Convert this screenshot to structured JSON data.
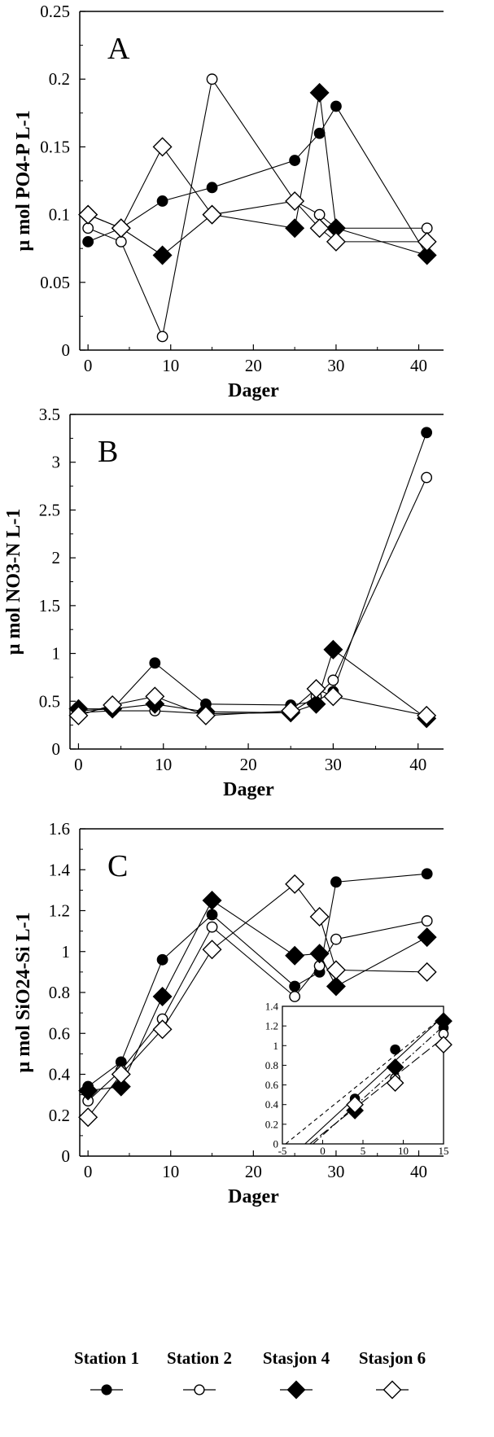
{
  "colors": {
    "ink": "#000000",
    "background": "#ffffff"
  },
  "legend": {
    "items": [
      {
        "label": "Station 1",
        "marker": "filled-circle"
      },
      {
        "label": "Station 2",
        "marker": "open-circle"
      },
      {
        "label": "Stasjon 4",
        "marker": "filled-diamond"
      },
      {
        "label": "Stasjon 6",
        "marker": "open-diamond"
      }
    ]
  },
  "chart_data": [
    {
      "type": "line",
      "panel_label": "A",
      "xlabel": "Dager",
      "ylabel": "µ mol PO4-P L-1",
      "xlim": [
        -1,
        43
      ],
      "ylim": [
        0,
        0.25
      ],
      "xticks": [
        0,
        10,
        20,
        30,
        40
      ],
      "yticks": [
        0,
        0.05,
        0.1,
        0.15,
        0.2,
        0.25
      ],
      "ytick_labels": [
        "0",
        "0.05",
        "0.1",
        "0.15",
        "0.2",
        "0.25"
      ],
      "grid": false,
      "series": [
        {
          "name": "Station 1",
          "marker": "filled-circle",
          "x": [
            0,
            4,
            9,
            15,
            25,
            28,
            30,
            41
          ],
          "y": [
            0.08,
            0.09,
            0.11,
            0.12,
            0.14,
            0.16,
            0.18,
            0.07
          ]
        },
        {
          "name": "Station 2",
          "marker": "open-circle",
          "x": [
            0,
            4,
            9,
            15,
            25,
            28,
            30,
            41
          ],
          "y": [
            0.09,
            0.08,
            0.01,
            0.2,
            0.11,
            0.1,
            0.09,
            0.09
          ]
        },
        {
          "name": "Stasjon 4",
          "marker": "filled-diamond",
          "x": [
            0,
            4,
            9,
            15,
            25,
            28,
            30,
            41
          ],
          "y": [
            0.1,
            0.09,
            0.07,
            0.1,
            0.09,
            0.19,
            0.09,
            0.07
          ]
        },
        {
          "name": "Stasjon 6",
          "marker": "open-diamond",
          "x": [
            0,
            4,
            9,
            15,
            25,
            28,
            30,
            41
          ],
          "y": [
            0.1,
            0.09,
            0.15,
            0.1,
            0.11,
            0.09,
            0.08,
            0.08
          ]
        }
      ]
    },
    {
      "type": "line",
      "panel_label": "B",
      "xlabel": "Dager",
      "ylabel": "µ mol NO3-N L-1",
      "xlim": [
        -1,
        43
      ],
      "ylim": [
        0,
        3.5
      ],
      "xticks": [
        0,
        10,
        20,
        30,
        40
      ],
      "yticks": [
        0,
        0.5,
        1,
        1.5,
        2,
        2.5,
        3,
        3.5
      ],
      "ytick_labels": [
        "0",
        "0.5",
        "1",
        "1.5",
        "2",
        "2.5",
        "3",
        "3.5"
      ],
      "grid": false,
      "series": [
        {
          "name": "Station 1",
          "marker": "filled-circle",
          "x": [
            0,
            4,
            9,
            15,
            25,
            28,
            30,
            41
          ],
          "y": [
            0.4,
            0.42,
            0.9,
            0.47,
            0.46,
            0.5,
            0.6,
            3.31
          ]
        },
        {
          "name": "Station 2",
          "marker": "open-circle",
          "x": [
            0,
            4,
            9,
            15,
            25,
            28,
            30,
            41
          ],
          "y": [
            0.38,
            0.4,
            0.4,
            0.37,
            0.38,
            0.55,
            0.72,
            2.84
          ]
        },
        {
          "name": "Stasjon 4",
          "marker": "filled-diamond",
          "x": [
            0,
            4,
            9,
            15,
            25,
            28,
            30,
            41
          ],
          "y": [
            0.42,
            0.42,
            0.47,
            0.39,
            0.38,
            0.47,
            1.04,
            0.32
          ]
        },
        {
          "name": "Stasjon 6",
          "marker": "open-diamond",
          "x": [
            0,
            4,
            9,
            15,
            25,
            28,
            30,
            41
          ],
          "y": [
            0.35,
            0.46,
            0.55,
            0.35,
            0.4,
            0.63,
            0.55,
            0.35
          ]
        }
      ]
    },
    {
      "type": "line",
      "panel_label": "C",
      "xlabel": "Dager",
      "ylabel": "µ mol SiO24-Si L-1",
      "xlim": [
        -1,
        43
      ],
      "ylim": [
        0,
        1.6
      ],
      "xticks": [
        0,
        10,
        20,
        30,
        40
      ],
      "yticks": [
        0,
        0.2,
        0.4,
        0.6,
        0.8,
        1,
        1.2,
        1.4,
        1.6
      ],
      "ytick_labels": [
        "0",
        "0.2",
        "0.4",
        "0.6",
        "0.8",
        "1",
        "1.2",
        "1.4",
        "1.6"
      ],
      "grid": false,
      "series": [
        {
          "name": "Station 1",
          "marker": "filled-circle",
          "x": [
            0,
            4,
            9,
            15,
            25,
            28,
            30,
            41
          ],
          "y": [
            0.34,
            0.46,
            0.96,
            1.18,
            0.83,
            0.9,
            1.34,
            1.38
          ]
        },
        {
          "name": "Station 2",
          "marker": "open-circle",
          "x": [
            0,
            4,
            9,
            15,
            25,
            28,
            30,
            41
          ],
          "y": [
            0.27,
            0.42,
            0.67,
            1.12,
            0.78,
            0.93,
            1.06,
            1.15
          ]
        },
        {
          "name": "Stasjon 4",
          "marker": "filled-diamond",
          "x": [
            0,
            4,
            9,
            15,
            25,
            28,
            30,
            41
          ],
          "y": [
            0.32,
            0.34,
            0.78,
            1.25,
            0.98,
            0.99,
            0.83,
            1.07
          ]
        },
        {
          "name": "Stasjon 6",
          "marker": "open-diamond",
          "x": [
            0,
            4,
            9,
            15,
            25,
            28,
            30,
            41
          ],
          "y": [
            0.19,
            0.4,
            0.62,
            1.01,
            1.33,
            1.17,
            0.91,
            0.9
          ]
        }
      ],
      "inset": {
        "xlim": [
          -5,
          15
        ],
        "ylim": [
          0,
          1.4
        ],
        "xticks": [
          -5,
          0,
          5,
          10,
          15
        ],
        "yticks": [
          0,
          0.2,
          0.4,
          0.6,
          0.8,
          1,
          1.2,
          1.4
        ],
        "ytick_labels": [
          "0",
          "0.2",
          "0.4",
          "0.6",
          "0.8",
          "1",
          "1.2",
          "1.4"
        ],
        "points": [
          {
            "series": "Station 1",
            "x": [
              4,
              9,
              15
            ],
            "y": [
              0.46,
              0.96,
              1.18
            ]
          },
          {
            "series": "Station 2",
            "x": [
              4,
              9,
              15
            ],
            "y": [
              0.42,
              0.67,
              1.12
            ]
          },
          {
            "series": "Stasjon 4",
            "x": [
              4,
              9,
              15
            ],
            "y": [
              0.34,
              0.78,
              1.25
            ]
          },
          {
            "series": "Stasjon 6",
            "x": [
              4,
              9,
              15
            ],
            "y": [
              0.4,
              0.62,
              1.01
            ]
          }
        ],
        "fit_lines": [
          {
            "style": "dashed",
            "x": [
              -4.6,
              15
            ],
            "y": [
              0,
              1.3
            ]
          },
          {
            "style": "solid",
            "x": [
              -2.2,
              15
            ],
            "y": [
              0,
              1.3
            ]
          },
          {
            "style": "dash-dot",
            "x": [
              -1.2,
              15
            ],
            "y": [
              0,
              1.2
            ]
          },
          {
            "style": "long-dash",
            "x": [
              -1.6,
              15
            ],
            "y": [
              0,
              1.08
            ]
          }
        ]
      }
    }
  ]
}
